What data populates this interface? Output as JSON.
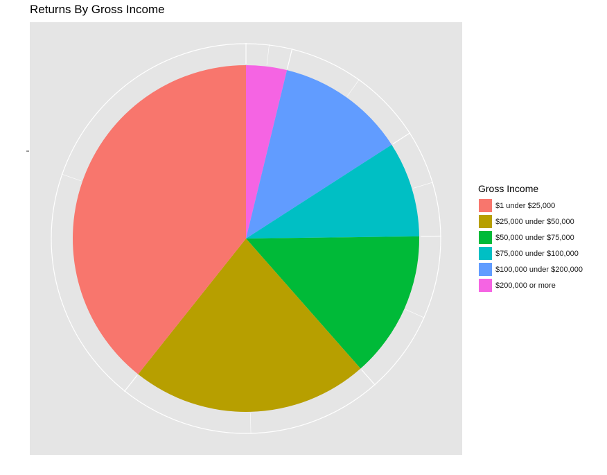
{
  "colors": {
    "panel_background": "#e5e5e5",
    "grid": "#ffffff"
  },
  "chart_data": {
    "type": "pie",
    "title": "Returns By Gross Income",
    "xlabel": "",
    "ylabel": "",
    "grid": true,
    "legend": {
      "title": "Gross Income",
      "position": "right"
    },
    "slices": [
      {
        "label": "$1 under $25,000",
        "value": 39.3,
        "color": "#F8766D"
      },
      {
        "label": "$25,000 under $50,000",
        "value": 22.2,
        "color": "#B79F00"
      },
      {
        "label": "$50,000 under $75,000",
        "value": 13.7,
        "color": "#00BA38"
      },
      {
        "label": "$75,000 under $100,000",
        "value": 8.9,
        "color": "#00BFC4"
      },
      {
        "label": "$100,000 under $200,000",
        "value": 12.1,
        "color": "#619CFF"
      },
      {
        "label": "$200,000 or more",
        "value": 3.8,
        "color": "#F564E3"
      }
    ]
  }
}
